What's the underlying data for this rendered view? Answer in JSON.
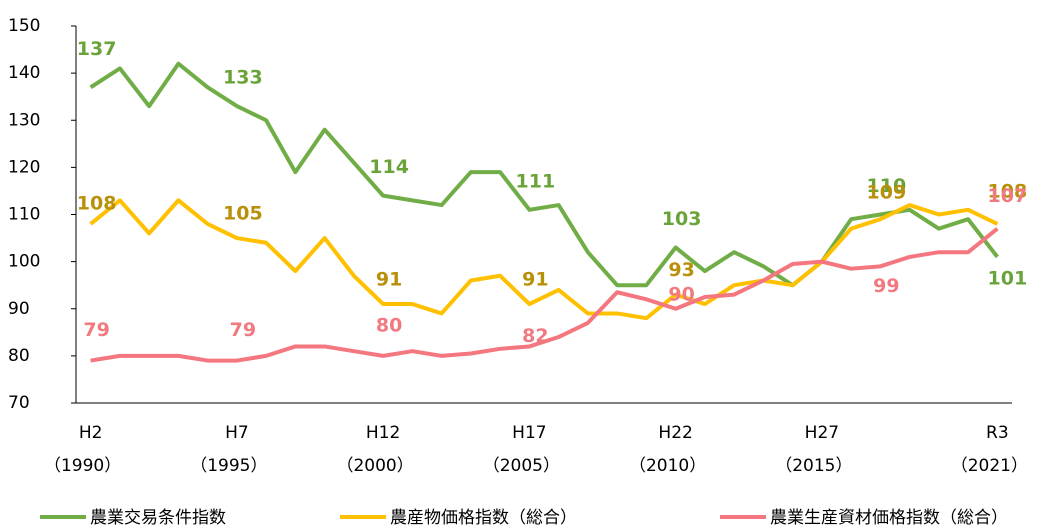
{
  "chart_data": {
    "type": "line",
    "categories": [
      "H2",
      null,
      null,
      null,
      null,
      "H7",
      null,
      null,
      null,
      null,
      "H12",
      null,
      null,
      null,
      null,
      "H17",
      null,
      null,
      null,
      null,
      "H22",
      null,
      null,
      null,
      null,
      "H27",
      null,
      null,
      null,
      null,
      null,
      "R3"
    ],
    "categories_sub": [
      "（1990）",
      null,
      null,
      null,
      null,
      "（1995）",
      null,
      null,
      null,
      null,
      "（2000）",
      null,
      null,
      null,
      null,
      "（2005）",
      null,
      null,
      null,
      null,
      "（2010）",
      null,
      null,
      null,
      null,
      "（2015）",
      null,
      null,
      null,
      null,
      null,
      "（2021）"
    ],
    "label_indices": [
      0,
      5,
      10,
      15,
      20,
      27,
      31
    ],
    "series": [
      {
        "name": "農業交易条件指数",
        "color": "#70ad47",
        "label_color": "#6aa33a",
        "values": [
          137,
          141,
          133,
          142,
          137,
          133,
          130,
          119,
          128,
          121,
          114,
          113,
          112,
          119,
          119,
          111,
          112,
          102,
          95,
          95,
          103,
          98,
          102,
          99,
          95,
          100,
          109,
          110,
          111,
          107,
          109,
          101
        ]
      },
      {
        "name": "農産物価格指数（総合）",
        "color": "#ffc000",
        "label_color": "#b8900a",
        "values": [
          108,
          113,
          106,
          113,
          108,
          105,
          104,
          98,
          105,
          97,
          91,
          91,
          89,
          96,
          97,
          91,
          94,
          89,
          89,
          88,
          93,
          91,
          95,
          96,
          95,
          100,
          107,
          109,
          112,
          110,
          111,
          108
        ]
      },
      {
        "name": "農業生産資材価格指数（総合）",
        "color": "#f4777f",
        "label_color": "#f07a80",
        "values": [
          79,
          80,
          80,
          80,
          79,
          79,
          80,
          82,
          82,
          81,
          80,
          81,
          80,
          80.5,
          81.5,
          82,
          84,
          87,
          93.5,
          92,
          90,
          92.5,
          93,
          96,
          99.5,
          100,
          98.5,
          99,
          101,
          102,
          102,
          107
        ]
      }
    ],
    "ylim": [
      70,
      150
    ],
    "yticks": [
      70,
      80,
      90,
      100,
      110,
      120,
      130,
      140,
      150
    ],
    "grid": false,
    "legend": "bottom"
  }
}
